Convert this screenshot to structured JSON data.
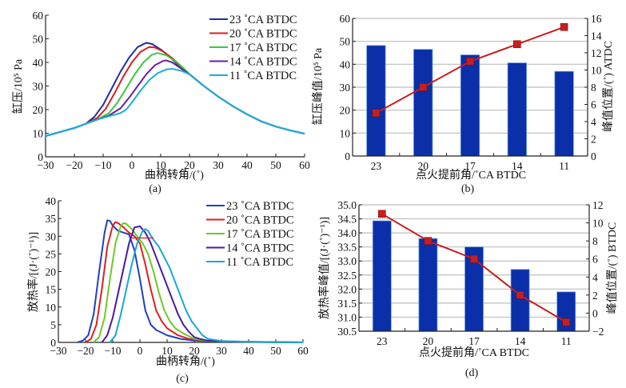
{
  "figure": {
    "panels": [
      "(a)",
      "(b)",
      "(c)",
      "(d)"
    ]
  },
  "chart_data": [
    {
      "id": "a",
      "type": "line",
      "panel_label": "(a)",
      "xlabel": "曲柄转角/(˚)",
      "ylabel": "缸压/10⁵ Pa",
      "xlim": [
        -30,
        60
      ],
      "ylim": [
        0,
        60
      ],
      "xticks": [
        -30,
        -20,
        -10,
        0,
        10,
        20,
        30,
        40,
        50,
        60
      ],
      "yticks": [
        0,
        10,
        20,
        30,
        40,
        50,
        60
      ],
      "xtick_labels": [
        "−30",
        "−20",
        "−10",
        "0",
        "10",
        "20",
        "30",
        "40",
        "50",
        "60"
      ],
      "ytick_labels": [
        "0",
        "10",
        "20",
        "30",
        "40",
        "50",
        "60"
      ],
      "grid": false,
      "legend_position": "top-right",
      "series": [
        {
          "name": "23 ˚CA BTDC",
          "color": "#1f2fa8",
          "x": [
            -30,
            -25,
            -20,
            -16,
            -13,
            -10,
            -7,
            -4,
            -1,
            2,
            5,
            7,
            10,
            13,
            16,
            20,
            25,
            30,
            35,
            40,
            45,
            50,
            55,
            60
          ],
          "y": [
            8.8,
            10.5,
            12.2,
            14,
            17,
            22,
            29,
            36,
            42,
            46.5,
            48.3,
            47.8,
            45.5,
            42.5,
            39,
            35,
            30,
            25.5,
            21.5,
            18,
            15,
            12.8,
            11.2,
            9.8
          ]
        },
        {
          "name": "20 ˚CA BTDC",
          "color": "#d42020",
          "x": [
            -30,
            -25,
            -20,
            -16,
            -12,
            -9,
            -6,
            -3,
            0,
            3,
            6,
            8,
            11,
            14,
            17,
            20,
            25,
            30,
            35,
            40,
            45,
            50,
            55,
            60
          ],
          "y": [
            8.8,
            10.5,
            12.2,
            14,
            16.5,
            20.5,
            27,
            34,
            40,
            44.5,
            46.5,
            46.3,
            44.5,
            41.8,
            38.5,
            35,
            30,
            25.5,
            21.5,
            18,
            15,
            12.8,
            11.2,
            9.8
          ]
        },
        {
          "name": "17 ˚CA BTDC",
          "color": "#3cc83c",
          "x": [
            -30,
            -25,
            -20,
            -16,
            -12,
            -8,
            -5,
            -2,
            1,
            4,
            7,
            9,
            12,
            15,
            18,
            20,
            25,
            30,
            35,
            40,
            45,
            50,
            55,
            60
          ],
          "y": [
            8.8,
            10.5,
            12.2,
            14,
            15.8,
            18.5,
            23,
            29,
            35,
            40,
            43.3,
            44,
            43,
            40.5,
            37.5,
            35,
            30,
            25.5,
            21.5,
            18,
            15,
            12.8,
            11.2,
            9.8
          ]
        },
        {
          "name": "14 ˚CA BTDC",
          "color": "#6a1fa0",
          "x": [
            -30,
            -25,
            -20,
            -16,
            -12,
            -8,
            -4,
            -1,
            2,
            5,
            8,
            11,
            12,
            14,
            17,
            20,
            25,
            30,
            35,
            40,
            45,
            50,
            55,
            60
          ],
          "y": [
            8.8,
            10.5,
            12.2,
            14,
            15.8,
            17.5,
            20.5,
            25,
            30,
            35,
            38.8,
            40.7,
            40.8,
            40,
            37.5,
            35,
            30,
            25.5,
            21.5,
            18,
            15,
            12.8,
            11.2,
            9.8
          ]
        },
        {
          "name": "11 ˚CA BTDC",
          "color": "#1ab0d8",
          "x": [
            -30,
            -25,
            -20,
            -16,
            -12,
            -8,
            -4,
            -2,
            0,
            3,
            6,
            9,
            12,
            14,
            17,
            20,
            25,
            30,
            35,
            40,
            45,
            50,
            55,
            60
          ],
          "y": [
            8.8,
            10.5,
            12.2,
            14,
            15.8,
            17.2,
            18.5,
            20,
            23,
            28,
            32.5,
            35.5,
            37,
            37.3,
            36.5,
            35,
            30,
            25.5,
            21.5,
            18,
            15,
            12.8,
            11.2,
            9.8
          ]
        }
      ]
    },
    {
      "id": "b",
      "type": "bar",
      "panel_label": "(b)",
      "xlabel": "点火提前角/˚CA BTDC",
      "ylabel": "缸压峰值/10⁵ Pa",
      "y2label": "峰值位置/(˚) ATDC",
      "categories": [
        "23",
        "20",
        "17",
        "14",
        "11"
      ],
      "ylim": [
        0,
        60
      ],
      "y2lim": [
        0,
        16
      ],
      "yticks": [
        0,
        10,
        20,
        30,
        40,
        50,
        60
      ],
      "y2ticks": [
        0,
        2,
        4,
        6,
        8,
        10,
        12,
        14,
        16
      ],
      "grid": true,
      "series": [
        {
          "name": "缸压峰值",
          "kind": "bar",
          "axis": "left",
          "color": "#0a2fa8",
          "values": [
            48.2,
            46.5,
            44.1,
            40.6,
            36.9
          ]
        },
        {
          "name": "峰值位置",
          "kind": "line",
          "axis": "right",
          "color": "#c81e1e",
          "marker": "square",
          "values": [
            5,
            8,
            11,
            13,
            15
          ]
        }
      ]
    },
    {
      "id": "c",
      "type": "line",
      "panel_label": "(c)",
      "xlabel": "曲柄转角/(˚)",
      "ylabel": "放热率/[(J·(˚)⁻¹)]",
      "xlim": [
        -30,
        60
      ],
      "ylim": [
        0,
        40
      ],
      "xticks": [
        -30,
        -20,
        -10,
        0,
        10,
        20,
        30,
        40,
        50,
        60
      ],
      "yticks": [
        0,
        5,
        10,
        15,
        20,
        25,
        30,
        35,
        40
      ],
      "xtick_labels": [
        "−30",
        "−20",
        "−10",
        "0",
        "10",
        "20",
        "30",
        "40",
        "50",
        "60"
      ],
      "ytick_labels": [
        "0",
        "5",
        "10",
        "15",
        "20",
        "25",
        "30",
        "35",
        "40"
      ],
      "grid": false,
      "legend_position": "top-right",
      "series": [
        {
          "name": "23 ˚CA BTDC",
          "color": "#1f3fc8",
          "x": [
            -23,
            -21,
            -19,
            -17,
            -15,
            -13,
            -12,
            -11,
            -10,
            -8,
            -6,
            -4,
            -2,
            0,
            2,
            4,
            6,
            10,
            15,
            20,
            30,
            45,
            60
          ],
          "y": [
            0,
            0.5,
            2,
            8,
            20,
            31,
            34.5,
            34.3,
            33,
            31.5,
            31,
            30.5,
            26,
            18,
            9,
            5,
            3.5,
            2,
            1,
            0.5,
            0.2,
            0.1,
            0
          ]
        },
        {
          "name": "20 ˚CA BTDC",
          "color": "#e01e1e",
          "x": [
            -20,
            -18,
            -16,
            -14,
            -12,
            -10,
            -9,
            -8,
            -6,
            -4,
            -2,
            0,
            2,
            4,
            6,
            8,
            10,
            14,
            18,
            25,
            35,
            50,
            60
          ],
          "y": [
            0,
            1,
            5,
            15,
            27,
            33,
            34,
            33.7,
            32.5,
            31,
            30,
            28,
            22,
            15,
            9,
            6,
            4,
            2,
            1,
            0.4,
            0.2,
            0.1,
            0
          ]
        },
        {
          "name": "17 ˚CA BTDC",
          "color": "#6cc828",
          "x": [
            -17,
            -15,
            -13,
            -11,
            -9,
            -7,
            -6,
            -5,
            -3,
            -1,
            1,
            3,
            5,
            7,
            9,
            11,
            13,
            16,
            20,
            25,
            35,
            50,
            60
          ],
          "y": [
            0,
            1.5,
            7,
            18,
            28,
            33,
            33.7,
            33.5,
            32,
            30,
            28,
            25,
            20,
            14,
            9,
            6,
            4,
            2.5,
            1,
            0.4,
            0.2,
            0.1,
            0
          ]
        },
        {
          "name": "14 ˚CA BTDC",
          "color": "#4a1aa0",
          "x": [
            -14,
            -12,
            -10,
            -8,
            -6,
            -4,
            -2,
            0,
            2,
            4,
            6,
            8,
            10,
            12,
            14,
            16,
            18,
            20,
            22,
            25,
            35,
            50,
            60
          ],
          "y": [
            0,
            2,
            7,
            14,
            21,
            28,
            32.5,
            32.8,
            31,
            28,
            24,
            20,
            16,
            12,
            8,
            5,
            3,
            1.5,
            1,
            0.5,
            0.2,
            0.1,
            0
          ]
        },
        {
          "name": "11 ˚CA BTDC",
          "color": "#18a8d0",
          "x": [
            -11,
            -9,
            -7,
            -5,
            -3,
            -1,
            1,
            2,
            3,
            5,
            7,
            9,
            11,
            13,
            15,
            17,
            19,
            21,
            23,
            25,
            30,
            45,
            60
          ],
          "y": [
            0,
            2,
            8,
            15,
            22,
            28,
            31.5,
            32,
            31.5,
            29,
            27,
            24,
            21,
            17,
            13,
            9,
            6,
            4,
            2,
            1,
            0.4,
            0.1,
            0
          ]
        }
      ],
      "annotation_line": {
        "color": "#e01e1e",
        "x": [
          -3,
          5
        ],
        "y": [
          29.5,
          29.5
        ]
      }
    },
    {
      "id": "d",
      "type": "bar",
      "panel_label": "(d)",
      "xlabel": "点火提前角/˚CA BTDC",
      "ylabel": "放热率峰值/[(J·(˚)⁻¹)]",
      "y2label": "峰值位置/(˚) BTDC",
      "categories": [
        "23",
        "20",
        "17",
        "14",
        "11"
      ],
      "ylim": [
        30.5,
        35.0
      ],
      "y2lim": [
        -2,
        12
      ],
      "yticks": [
        30.5,
        31.0,
        31.5,
        32.0,
        32.5,
        33.0,
        33.5,
        34.0,
        34.5,
        35.0
      ],
      "ytick_labels": [
        "30.5",
        "31.0",
        "31.5",
        "32.0",
        "32.5",
        "33.0",
        "33.5",
        "34.0",
        "34.5",
        "35.0"
      ],
      "y2ticks": [
        -2,
        0,
        2,
        4,
        6,
        8,
        10,
        12
      ],
      "y2tick_labels": [
        "−2",
        "0",
        "2",
        "4",
        "6",
        "8",
        "10",
        "12"
      ],
      "grid": true,
      "series": [
        {
          "name": "放热率峰值",
          "kind": "bar",
          "axis": "left",
          "color": "#0a2fa8",
          "values": [
            34.43,
            33.8,
            33.5,
            32.7,
            31.9
          ]
        },
        {
          "name": "峰值位置",
          "kind": "line",
          "axis": "right",
          "color": "#c81e1e",
          "marker": "square",
          "values": [
            11,
            8,
            6,
            2,
            -1
          ]
        }
      ]
    }
  ]
}
